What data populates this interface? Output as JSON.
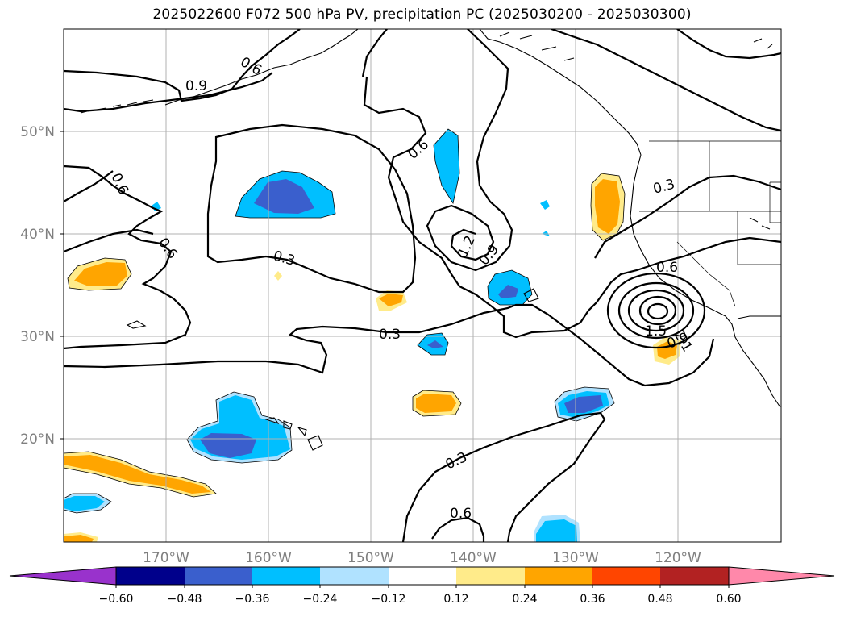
{
  "title": "2025022600 F072 500 hPa PV, precipitation PC (2025030200 - 2025030300)",
  "map": {
    "lat_labels": [
      "50°N",
      "40°N",
      "30°N",
      "20°N"
    ],
    "lon_labels": [
      "170°W",
      "160°W",
      "150°W",
      "140°W",
      "130°W",
      "120°W"
    ],
    "contour_labels": [
      "0.6",
      "0.9",
      "0.6",
      "0.6",
      "0.3",
      "0.6",
      "1.2",
      "0.9",
      "0.3",
      "0.3",
      "0.6",
      "1.5",
      "2.1",
      "0.9",
      "0.3",
      "0.6"
    ]
  },
  "colorbar": {
    "tick_labels": [
      "−0.60",
      "−0.48",
      "−0.36",
      "−0.24",
      "−0.12",
      "0.12",
      "0.24",
      "0.36",
      "0.48",
      "0.60"
    ],
    "colors": [
      "#9932cc",
      "#00008b",
      "#3a5fcd",
      "#00bfff",
      "#b0e2ff",
      "#ffffff",
      "#ffeb8a",
      "#ffa500",
      "#ff4500",
      "#b22222",
      "#ff88aa"
    ]
  }
}
